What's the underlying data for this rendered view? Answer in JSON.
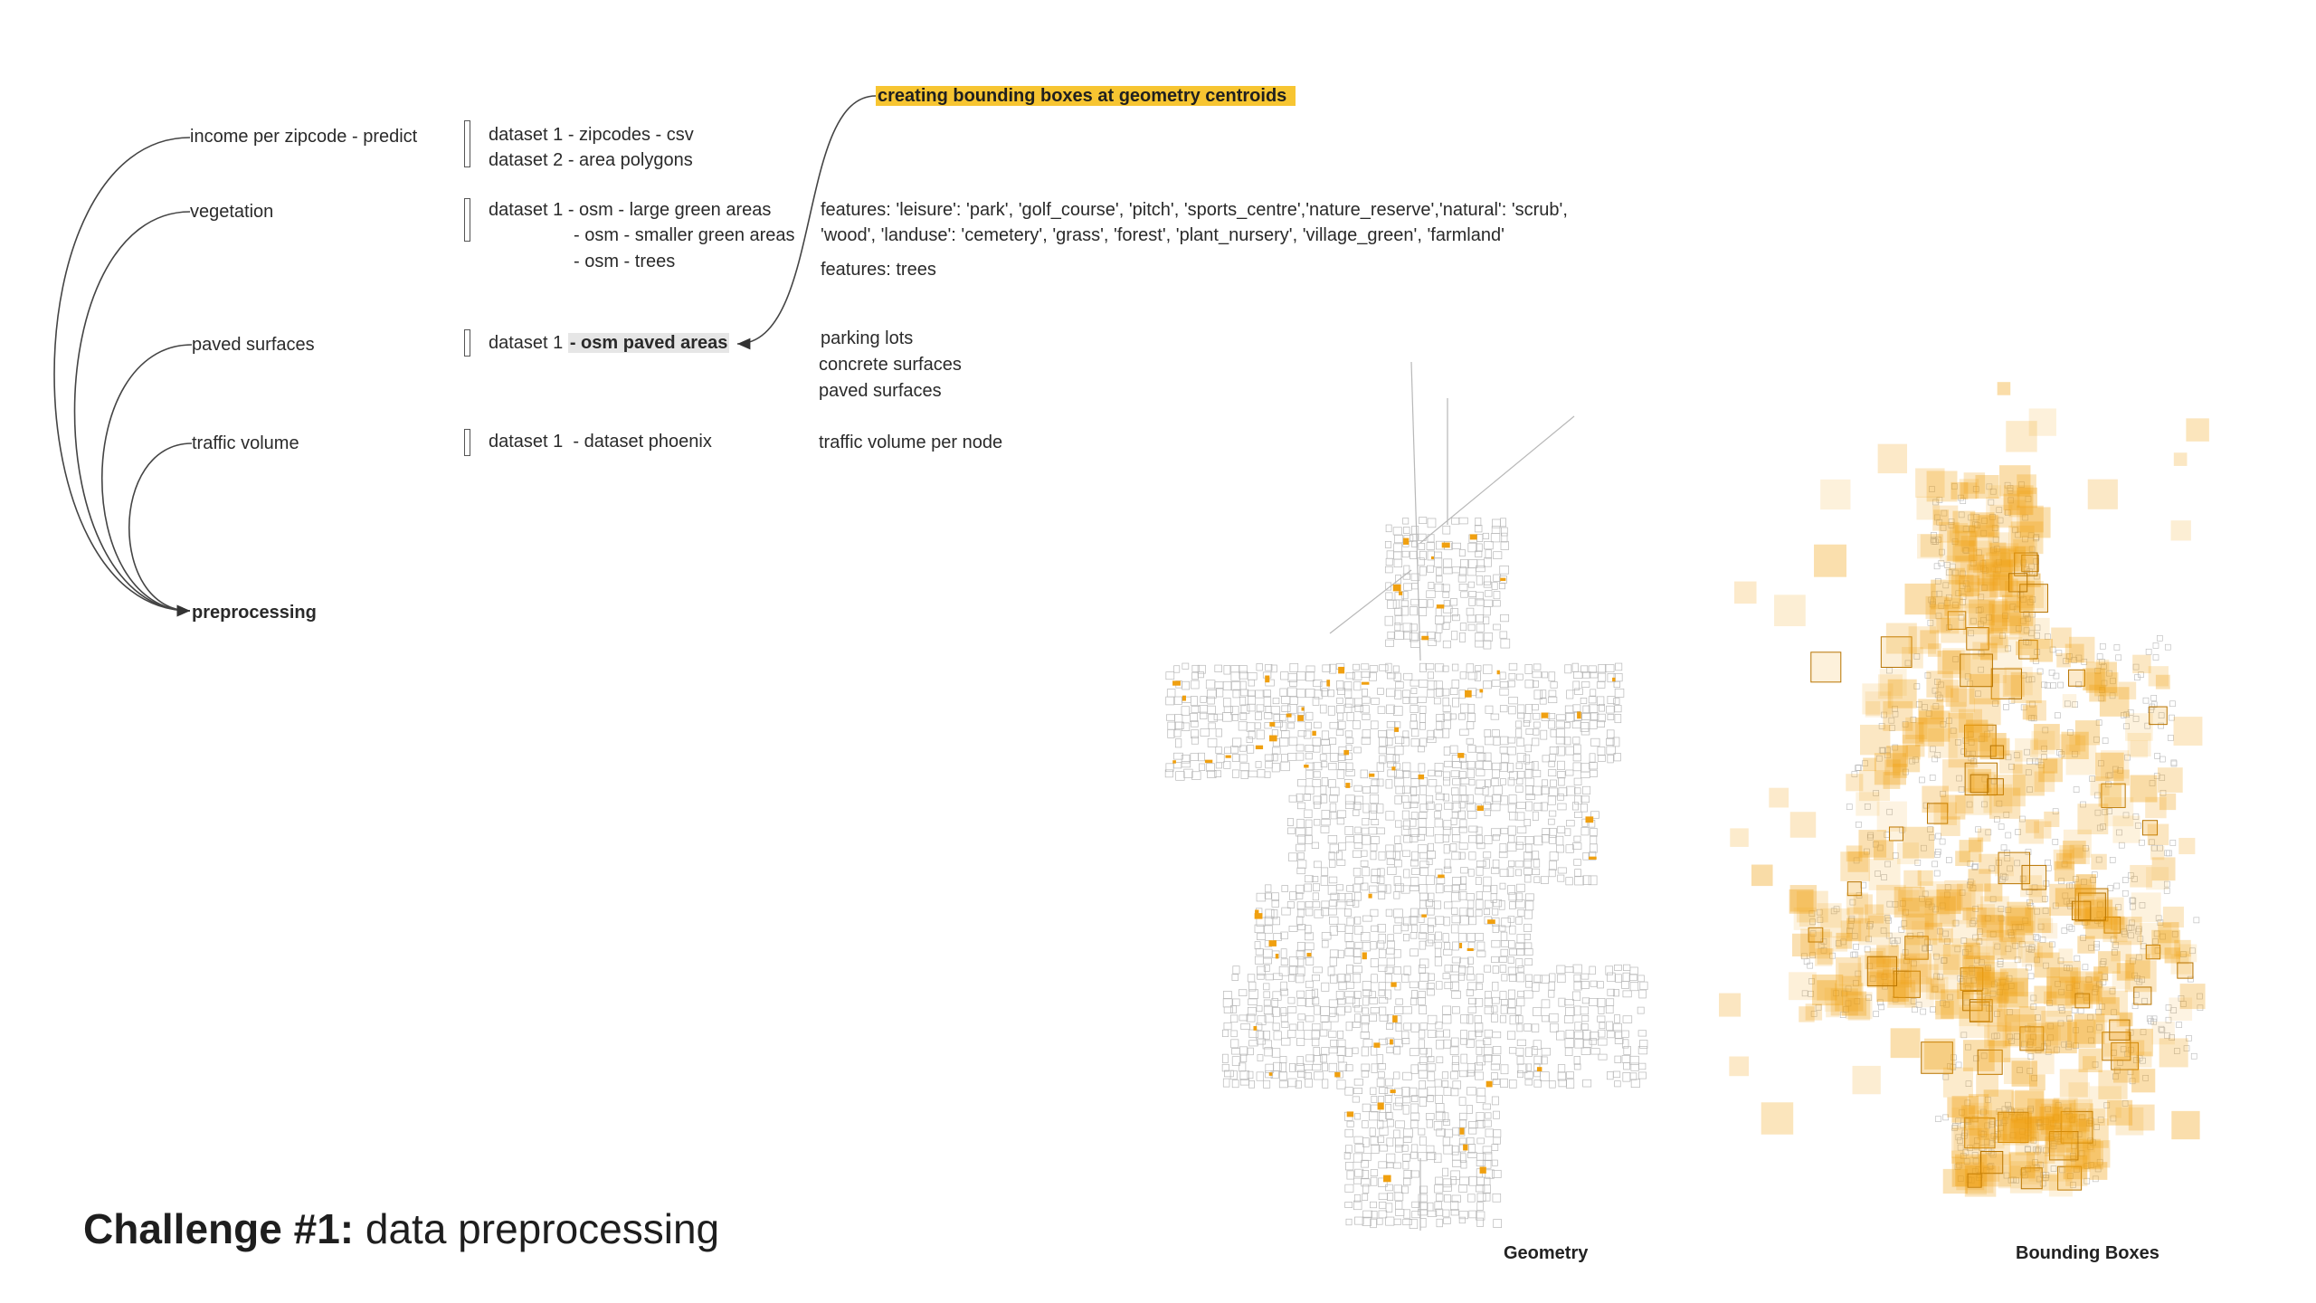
{
  "topics": {
    "income": "income per zipcode - predict",
    "vegetation": "vegetation",
    "paved": "paved surfaces",
    "traffic": "traffic volume",
    "preprocessing": "preprocessing"
  },
  "datasets": {
    "income": [
      "dataset 1 - zipcodes - csv",
      "dataset 2 - area polygons"
    ],
    "vegetation": [
      "dataset 1 - osm - large green areas",
      "- osm - smaller green areas",
      "- osm - trees"
    ],
    "paved_prefix": "dataset 1 ",
    "paved_highlight": "- osm paved areas",
    "traffic": "dataset 1  - dataset phoenix"
  },
  "features": {
    "green_line1": "features: 'leisure': 'park', 'golf_course', 'pitch', 'sports_centre','nature_reserve','natural': 'scrub',",
    "green_line2": "'wood', 'landuse': 'cemetery', 'grass', 'forest', 'plant_nursery', 'village_green', 'farmland'",
    "trees": "features: trees",
    "paved": [
      "parking lots",
      "concrete surfaces",
      "paved surfaces"
    ],
    "traffic": "traffic volume per node"
  },
  "callout": "creating bounding boxes at geometry centroids",
  "title": {
    "bold": "Challenge #1:",
    "rest": " data preprocessing"
  },
  "captions": {
    "geometry": "Geometry",
    "bboxes": "Bounding Boxes"
  },
  "colors": {
    "highlight": "#f7c531",
    "orange": "#f0a010",
    "grey_lines": "#b8b8b8"
  }
}
